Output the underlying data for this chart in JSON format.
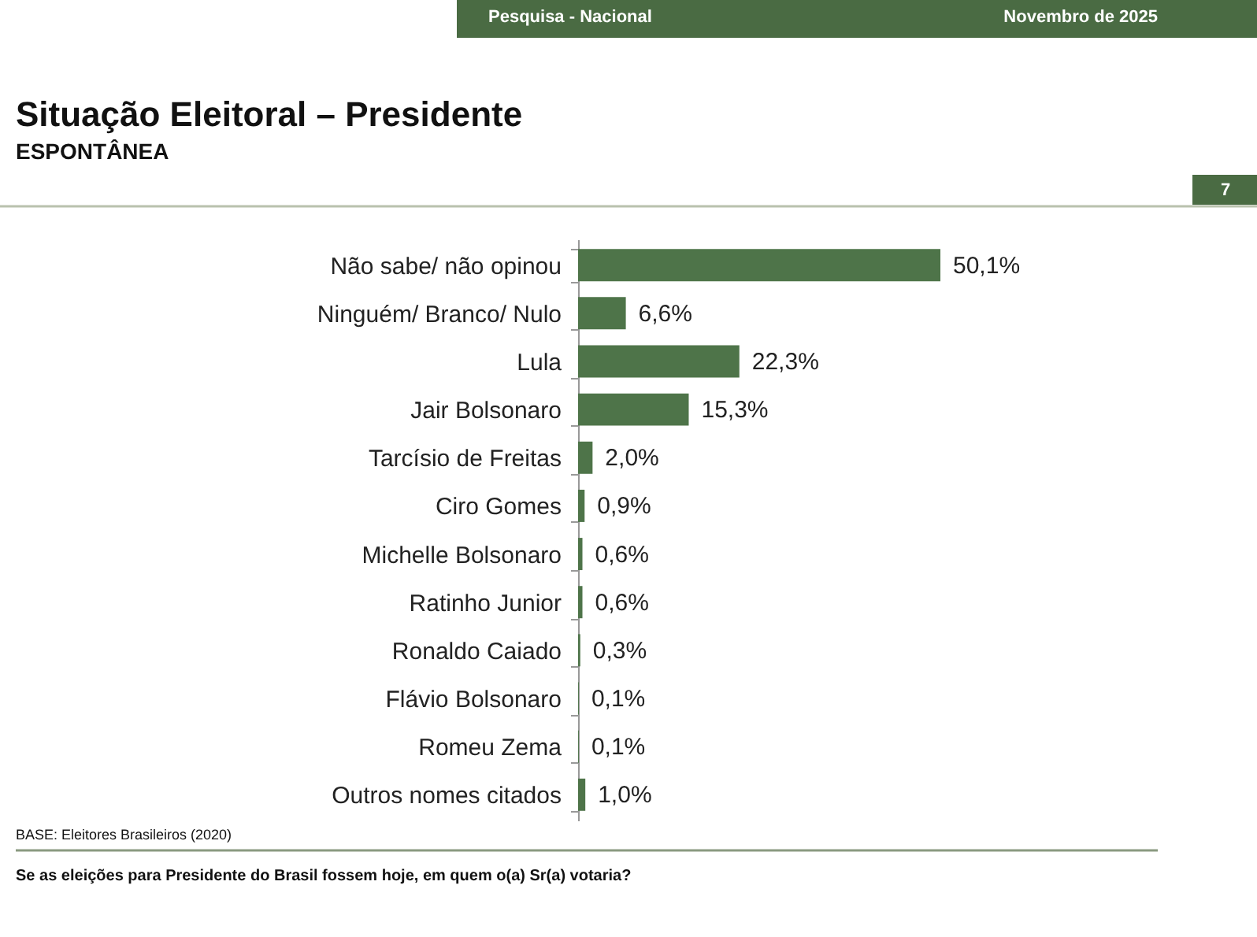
{
  "chart_data": {
    "type": "bar",
    "orientation": "horizontal",
    "title": "Situação Eleitoral – Presidente",
    "subtitle": "ESPONTÂNEA",
    "categories": [
      "Não sabe/ não opinou",
      "Ninguém/ Branco/ Nulo",
      "Lula",
      "Jair Bolsonaro",
      "Tarcísio de Freitas",
      "Ciro Gomes",
      "Michelle Bolsonaro",
      "Ratinho Junior",
      "Ronaldo Caiado",
      "Flávio Bolsonaro",
      "Romeu Zema",
      "Outros nomes citados"
    ],
    "values": [
      50.1,
      6.6,
      22.3,
      15.3,
      2.0,
      0.9,
      0.6,
      0.6,
      0.3,
      0.1,
      0.1,
      1.0
    ],
    "value_labels": [
      "50,1%",
      "6,6%",
      "22,3%",
      "15,3%",
      "2,0%",
      "0,9%",
      "0,6%",
      "0,6%",
      "0,3%",
      "0,1%",
      "0,1%",
      "1,0%"
    ],
    "color": "#4e7449",
    "annotations": [
      "Pesquisa - Nacional",
      "Novembro de 2025",
      "7",
      "BASE: Eleitores Brasileiros (2020)",
      "Se as eleições para Presidente do Brasil fossem hoje, em quem o(a) Sr(a) votaria?"
    ],
    "grid": false
  }
}
